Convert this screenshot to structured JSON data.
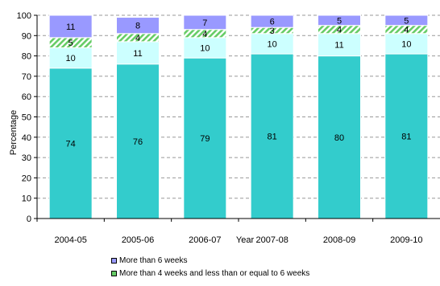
{
  "chart_data": {
    "type": "bar",
    "stacked": true,
    "xlabel": "Year",
    "ylabel": "Percentage",
    "ylim": [
      0,
      100
    ],
    "yticks": [
      0,
      10,
      20,
      30,
      40,
      50,
      60,
      70,
      80,
      90,
      100
    ],
    "grid": true,
    "legend_position": "bottom",
    "categories": [
      "2004-05",
      "2005-06",
      "2006-07",
      "2007-08",
      "2008-09",
      "2009-10"
    ],
    "series": [
      {
        "key": "s1",
        "values": [
          74,
          76,
          79,
          81,
          80,
          81
        ],
        "color": "#33CCCC"
      },
      {
        "key": "s2",
        "values": [
          10,
          11,
          10,
          10,
          11,
          10
        ],
        "color": "#CCFFFF"
      },
      {
        "name": "More than 4 weeks  and  less  than  or equal  to 6 weeks",
        "values": [
          5,
          4,
          4,
          3,
          4,
          4
        ],
        "color": "#66CC66",
        "pattern": "hatch"
      },
      {
        "name": "More than  6 weeks",
        "values": [
          11,
          8,
          7,
          6,
          5,
          5
        ],
        "color": "#9999FF"
      }
    ]
  },
  "legend": {
    "items": [
      {
        "label": "More than  6 weeks",
        "color": "#9999FF"
      },
      {
        "label": "More than 4 weeks  and  less  than  or equal  to 6 weeks",
        "color": "#66CC66"
      }
    ]
  }
}
